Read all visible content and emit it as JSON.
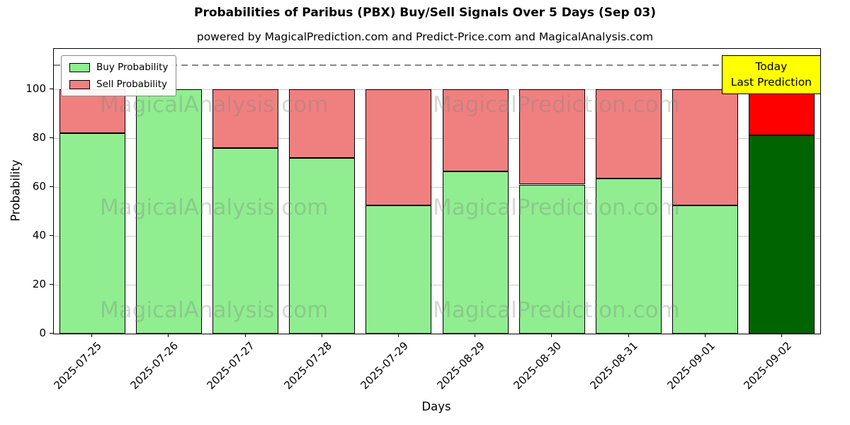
{
  "title": "Probabilities of Paribus (PBX) Buy/Sell Signals Over 5 Days (Sep 03)",
  "subtitle": "powered by MagicalPrediction.com and Predict-Price.com and MagicalAnalysis.com",
  "chart_data": {
    "type": "bar",
    "stacked": true,
    "title": "Probabilities of Paribus (PBX) Buy/Sell Signals Over 5 Days (Sep 03)",
    "xlabel": "Days",
    "ylabel": "Probability",
    "categories": [
      "2025-07-25",
      "2025-07-26",
      "2025-07-27",
      "2025-07-28",
      "2025-07-29",
      "2025-08-29",
      "2025-08-30",
      "2025-08-31",
      "2025-09-01",
      "2025-09-02"
    ],
    "series": [
      {
        "name": "Buy Probability",
        "color": "#90EE90",
        "values": [
          82,
          100,
          76,
          72,
          52.5,
          66.5,
          61,
          63.5,
          52.5,
          81
        ]
      },
      {
        "name": "Sell Probability",
        "color": "#F08080",
        "values": [
          18,
          0,
          24,
          28,
          47.5,
          33.5,
          39,
          36.5,
          47.5,
          19
        ]
      }
    ],
    "today_colors": {
      "buy": "#006400",
      "sell": "#FF0000"
    },
    "yticks": [
      0,
      20,
      40,
      60,
      80,
      100
    ],
    "ylim": [
      0,
      116.5
    ],
    "dashed_line_y": 110,
    "grid": true,
    "legend_position": "upper left",
    "annotation": {
      "line1": "Today",
      "line2": "Last Prediction",
      "bg": "#FFFF00"
    },
    "watermarks": [
      "MagicalAnalysis.com",
      "MagicalPrediction.com"
    ]
  }
}
